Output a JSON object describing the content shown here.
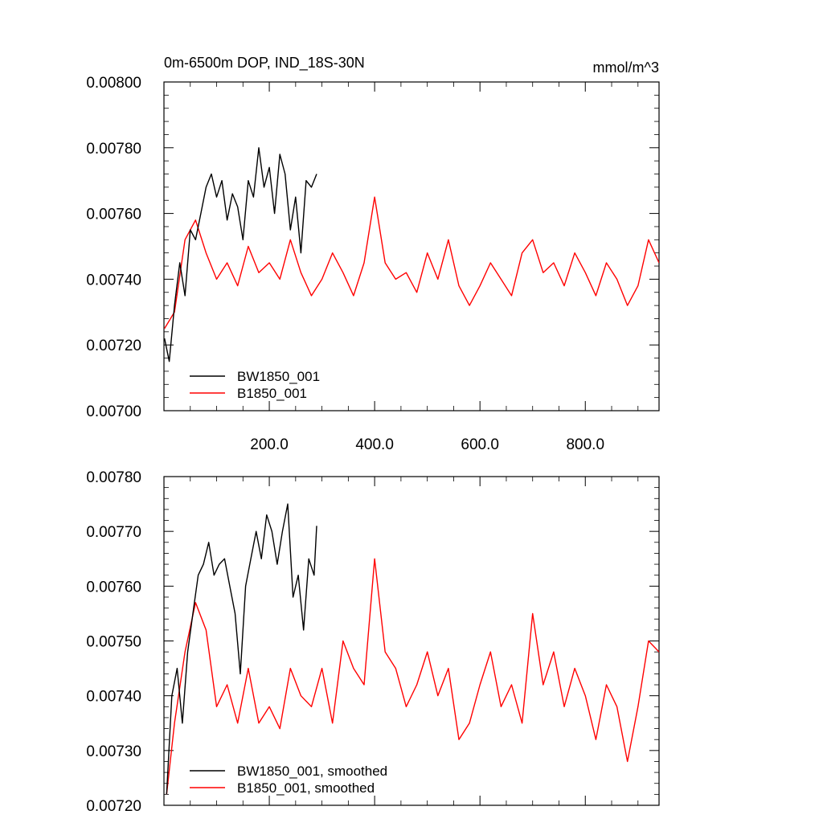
{
  "chart_data": [
    {
      "type": "line",
      "title": "0m-6500m DOP, IND_18S-30N",
      "units": "mmol/m^3",
      "xlim": [
        0,
        940
      ],
      "ylim": [
        0.007,
        0.008
      ],
      "x_ticks": [
        200,
        400,
        600,
        800
      ],
      "x_tick_labels": [
        "200.0",
        "400.0",
        "600.0",
        "800.0"
      ],
      "y_ticks": [
        0.007,
        0.0072,
        0.0074,
        0.0076,
        0.0078,
        0.008
      ],
      "y_tick_labels": [
        "0.00700",
        "0.00720",
        "0.00740",
        "0.00760",
        "0.00780",
        "0.00800"
      ],
      "legend_position": "bottom-left",
      "series": [
        {
          "name": "BW1850_001",
          "color": "#000000",
          "x": [
            1,
            10,
            20,
            30,
            40,
            50,
            60,
            70,
            80,
            90,
            100,
            110,
            120,
            130,
            140,
            150,
            160,
            170,
            180,
            190,
            200,
            210,
            220,
            230,
            240,
            250,
            260,
            270,
            280,
            290
          ],
          "y": [
            0.00722,
            0.00715,
            0.00732,
            0.00745,
            0.00735,
            0.00755,
            0.00752,
            0.0076,
            0.00768,
            0.00772,
            0.00765,
            0.0077,
            0.00758,
            0.00766,
            0.00762,
            0.00752,
            0.0077,
            0.00765,
            0.0078,
            0.00768,
            0.00774,
            0.0076,
            0.00778,
            0.00772,
            0.00755,
            0.00765,
            0.00748,
            0.0077,
            0.00768,
            0.00772
          ]
        },
        {
          "name": "B1850_001",
          "color": "#ff0000",
          "x": [
            1,
            20,
            40,
            60,
            80,
            100,
            120,
            140,
            160,
            180,
            200,
            220,
            240,
            260,
            280,
            300,
            320,
            340,
            360,
            380,
            400,
            420,
            440,
            460,
            480,
            500,
            520,
            540,
            560,
            580,
            600,
            620,
            640,
            660,
            680,
            700,
            720,
            740,
            760,
            780,
            800,
            820,
            840,
            860,
            880,
            900,
            920,
            940
          ],
          "y": [
            0.00725,
            0.0073,
            0.00752,
            0.00758,
            0.00748,
            0.0074,
            0.00745,
            0.00738,
            0.0075,
            0.00742,
            0.00745,
            0.0074,
            0.00752,
            0.00742,
            0.00735,
            0.0074,
            0.00748,
            0.00742,
            0.00735,
            0.00745,
            0.00765,
            0.00745,
            0.0074,
            0.00742,
            0.00736,
            0.00748,
            0.0074,
            0.00752,
            0.00738,
            0.00732,
            0.00738,
            0.00745,
            0.0074,
            0.00735,
            0.00748,
            0.00752,
            0.00742,
            0.00745,
            0.00738,
            0.00748,
            0.00742,
            0.00735,
            0.00745,
            0.0074,
            0.00732,
            0.00738,
            0.00752,
            0.00745
          ]
        }
      ]
    },
    {
      "type": "line",
      "title": "",
      "xlim": [
        0,
        940
      ],
      "ylim": [
        0.0072,
        0.0078
      ],
      "x_ticks": [
        200,
        400,
        600,
        800
      ],
      "x_tick_labels": [
        "",
        "",
        "",
        ""
      ],
      "y_ticks": [
        0.0072,
        0.0073,
        0.0074,
        0.0075,
        0.0076,
        0.0077,
        0.0078
      ],
      "y_tick_labels": [
        "0.00720",
        "0.00730",
        "0.00740",
        "0.00750",
        "0.00760",
        "0.00770",
        "0.00780"
      ],
      "legend_position": "bottom-left",
      "series": [
        {
          "name": "BW1850_001, smoothed",
          "color": "#000000",
          "x": [
            5,
            15,
            25,
            35,
            45,
            55,
            65,
            75,
            85,
            95,
            105,
            115,
            125,
            135,
            145,
            155,
            165,
            175,
            185,
            195,
            205,
            215,
            225,
            235,
            245,
            255,
            265,
            275,
            285,
            290
          ],
          "y": [
            0.00722,
            0.0074,
            0.00745,
            0.00735,
            0.00748,
            0.00755,
            0.00762,
            0.00764,
            0.00768,
            0.00762,
            0.00764,
            0.00765,
            0.0076,
            0.00755,
            0.00744,
            0.0076,
            0.00765,
            0.0077,
            0.00765,
            0.00773,
            0.0077,
            0.00764,
            0.0077,
            0.00775,
            0.00758,
            0.00762,
            0.00752,
            0.00765,
            0.00762,
            0.00771
          ]
        },
        {
          "name": "B1850_001, smoothed",
          "color": "#ff0000",
          "x": [
            5,
            20,
            40,
            60,
            80,
            100,
            120,
            140,
            160,
            180,
            200,
            220,
            240,
            260,
            280,
            300,
            320,
            340,
            360,
            380,
            400,
            420,
            440,
            460,
            480,
            500,
            520,
            540,
            560,
            580,
            600,
            620,
            640,
            660,
            680,
            700,
            720,
            740,
            760,
            780,
            800,
            820,
            840,
            860,
            880,
            900,
            920,
            940
          ],
          "y": [
            0.00722,
            0.00735,
            0.00748,
            0.00757,
            0.00752,
            0.00738,
            0.00742,
            0.00735,
            0.00745,
            0.00735,
            0.00738,
            0.00734,
            0.00745,
            0.0074,
            0.00738,
            0.00745,
            0.00735,
            0.0075,
            0.00745,
            0.00742,
            0.00765,
            0.00748,
            0.00745,
            0.00738,
            0.00742,
            0.00748,
            0.0074,
            0.00745,
            0.00732,
            0.00735,
            0.00742,
            0.00748,
            0.00738,
            0.00742,
            0.00735,
            0.00755,
            0.00742,
            0.00748,
            0.00738,
            0.00745,
            0.0074,
            0.00732,
            0.00742,
            0.00738,
            0.00728,
            0.00738,
            0.0075,
            0.00748
          ]
        }
      ]
    }
  ]
}
